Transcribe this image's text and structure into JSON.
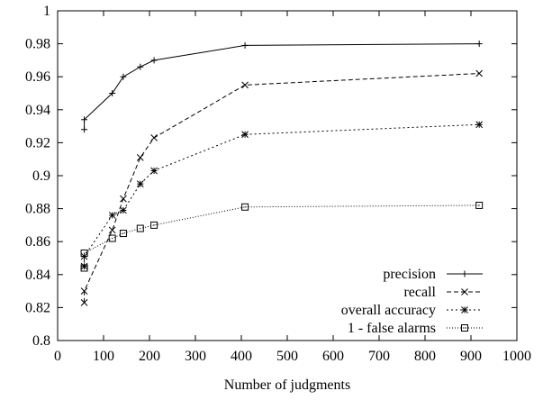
{
  "chart_data": {
    "type": "line",
    "title": "",
    "xlabel": "Number of judgments",
    "ylabel": "",
    "xlim": [
      0,
      1000
    ],
    "ylim": [
      0.8,
      1.0
    ],
    "xticks": [
      0,
      100,
      200,
      300,
      400,
      500,
      600,
      700,
      800,
      900,
      1000
    ],
    "yticks": [
      0.8,
      0.82,
      0.84,
      0.86,
      0.88,
      0.9,
      0.92,
      0.94,
      0.96,
      0.98,
      1.0
    ],
    "ytick_labels": [
      "0.8",
      "0.82",
      "0.84",
      "0.86",
      "0.88",
      "0.9",
      "0.92",
      "0.94",
      "0.96",
      "0.98",
      "1"
    ],
    "grid": false,
    "legend_position": "bottom-right",
    "series": [
      {
        "name": "precision",
        "marker": "plus",
        "dash": "solid",
        "x": [
          58,
          58,
          119,
          143,
          180,
          210,
          408,
          918
        ],
        "y": [
          0.928,
          0.934,
          0.95,
          0.96,
          0.966,
          0.97,
          0.979,
          0.98
        ]
      },
      {
        "name": "recall",
        "marker": "cross",
        "dash": "dashed",
        "x": [
          58,
          58,
          119,
          143,
          180,
          210,
          408,
          918
        ],
        "y": [
          0.823,
          0.83,
          0.867,
          0.886,
          0.911,
          0.923,
          0.955,
          0.962
        ]
      },
      {
        "name": "overall accuracy",
        "marker": "star",
        "dash": "dotted",
        "x": [
          58,
          58,
          119,
          143,
          180,
          210,
          408,
          918
        ],
        "y": [
          0.845,
          0.851,
          0.876,
          0.879,
          0.895,
          0.903,
          0.925,
          0.931
        ]
      },
      {
        "name": "1 - false alarms",
        "marker": "square",
        "dash": "finedot",
        "x": [
          58,
          58,
          119,
          143,
          180,
          210,
          408,
          918
        ],
        "y": [
          0.844,
          0.853,
          0.862,
          0.865,
          0.868,
          0.87,
          0.881,
          0.882
        ]
      }
    ]
  }
}
